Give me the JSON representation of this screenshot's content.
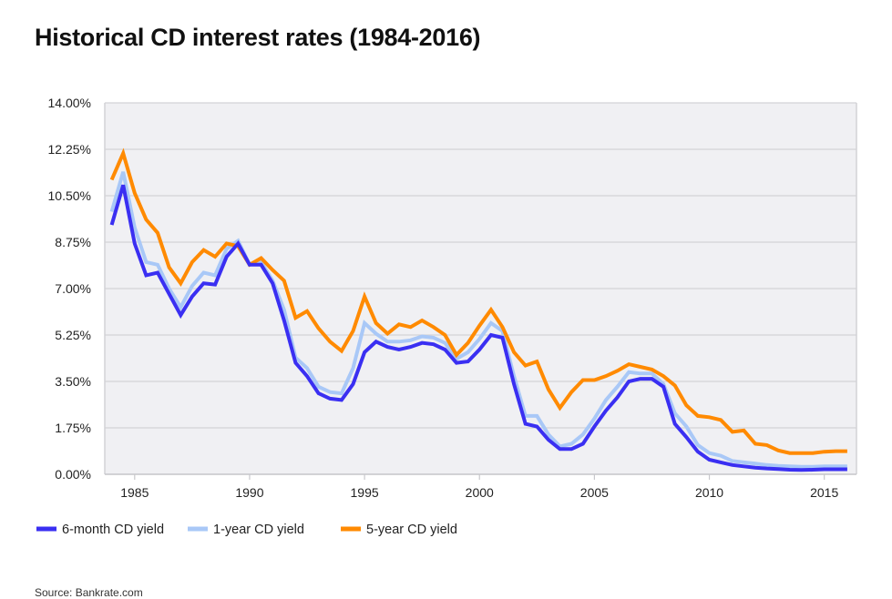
{
  "chart_data": {
    "type": "line",
    "title": "Historical CD interest rates (1984-2016)",
    "source": "Source: Bankrate.com",
    "xlabel": "",
    "ylabel": "",
    "xlim": [
      1983.7,
      2016.4
    ],
    "ylim": [
      0,
      14
    ],
    "x_ticks": [
      1985,
      1990,
      1995,
      2000,
      2005,
      2010,
      2015
    ],
    "y_ticks": [
      "0.00%",
      "1.75%",
      "3.50%",
      "5.25%",
      "7.00%",
      "8.75%",
      "10.50%",
      "12.25%",
      "14.00%"
    ],
    "y_tick_values": [
      0,
      1.75,
      3.5,
      5.25,
      7,
      8.75,
      10.5,
      12.25,
      14
    ],
    "grid": true,
    "legend_placement": "bottom",
    "background_color": "#f0f0f3",
    "x_start": 1984,
    "x_step": 0.5,
    "series": [
      {
        "name": "6-month CD yield",
        "color": "#3a2ff2",
        "values": [
          9.4,
          10.9,
          8.7,
          7.5,
          7.6,
          6.8,
          6.0,
          6.7,
          7.2,
          7.15,
          8.2,
          8.7,
          7.9,
          7.9,
          7.2,
          5.8,
          4.2,
          3.7,
          3.05,
          2.85,
          2.8,
          3.4,
          4.6,
          5.0,
          4.8,
          4.7,
          4.8,
          4.95,
          4.9,
          4.7,
          4.2,
          4.25,
          4.7,
          5.25,
          5.15,
          3.4,
          1.9,
          1.8,
          1.3,
          0.95,
          0.95,
          1.15,
          1.8,
          2.4,
          2.9,
          3.5,
          3.6,
          3.6,
          3.3,
          1.9,
          1.4,
          0.85,
          0.55,
          0.45,
          0.35,
          0.3,
          0.25,
          0.22,
          0.2,
          0.17,
          0.16,
          0.17,
          0.19,
          0.19,
          0.19
        ]
      },
      {
        "name": "1-year CD yield",
        "color": "#a9c8f7",
        "values": [
          9.9,
          11.4,
          9.3,
          8.0,
          7.9,
          7.0,
          6.3,
          7.1,
          7.6,
          7.5,
          8.5,
          8.8,
          7.9,
          8.0,
          7.3,
          6.2,
          4.4,
          4.0,
          3.3,
          3.1,
          3.05,
          4.0,
          5.7,
          5.3,
          5.0,
          5.0,
          5.05,
          5.2,
          5.15,
          4.95,
          4.35,
          4.6,
          5.1,
          5.7,
          5.4,
          3.7,
          2.2,
          2.2,
          1.5,
          1.05,
          1.15,
          1.5,
          2.1,
          2.8,
          3.3,
          3.85,
          3.8,
          3.8,
          3.4,
          2.3,
          1.8,
          1.1,
          0.8,
          0.7,
          0.5,
          0.45,
          0.4,
          0.35,
          0.32,
          0.3,
          0.28,
          0.28,
          0.3,
          0.3,
          0.3
        ]
      },
      {
        "name": "5-year CD yield",
        "color": "#ff8a00",
        "values": [
          11.1,
          12.1,
          10.6,
          9.6,
          9.1,
          7.8,
          7.2,
          8.0,
          8.45,
          8.2,
          8.7,
          8.6,
          7.9,
          8.15,
          7.7,
          7.3,
          5.9,
          6.15,
          5.5,
          5.0,
          4.65,
          5.4,
          6.7,
          5.7,
          5.3,
          5.65,
          5.55,
          5.8,
          5.55,
          5.25,
          4.5,
          4.95,
          5.6,
          6.2,
          5.55,
          4.6,
          4.1,
          4.25,
          3.2,
          2.5,
          3.1,
          3.55,
          3.55,
          3.7,
          3.9,
          4.15,
          4.05,
          3.95,
          3.7,
          3.35,
          2.6,
          2.2,
          2.15,
          2.05,
          1.6,
          1.65,
          1.15,
          1.1,
          0.9,
          0.8,
          0.8,
          0.8,
          0.85,
          0.87,
          0.87
        ]
      }
    ]
  }
}
